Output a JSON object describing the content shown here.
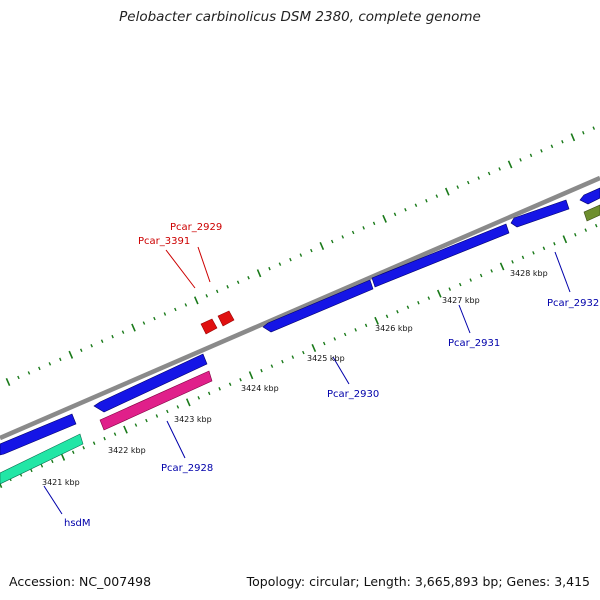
{
  "title": "Pelobacter carbinolicus DSM 2380, complete genome",
  "footer": {
    "accession": "Accession: NC_007498",
    "summary": "Topology: circular; Length: 3,665,893 bp; Genes: 3,415"
  },
  "colors": {
    "backbone": "#8a8a8a",
    "tick": "#1a7a1a",
    "cds": "#1010e0",
    "trna": "#e01010",
    "pink_feature": "#e0208a",
    "teal_feature": "#20e0a0",
    "olive_feature": "#6a8a2a",
    "forward_label": "#cc0000",
    "reverse_label": "#0000aa"
  },
  "ticks": [
    {
      "label": "3421 kbp"
    },
    {
      "label": "3422 kbp"
    },
    {
      "label": "3423 kbp"
    },
    {
      "label": "3424 kbp"
    },
    {
      "label": "3425 kbp"
    },
    {
      "label": "3426 kbp"
    },
    {
      "label": "3427 kbp"
    },
    {
      "label": "3428 kbp"
    }
  ],
  "gene_labels": [
    {
      "name": "Pcar_2929",
      "strand": "forward"
    },
    {
      "name": "Pcar_3391",
      "strand": "forward"
    },
    {
      "name": "Pcar_2932",
      "strand": "reverse"
    },
    {
      "name": "Pcar_2931",
      "strand": "reverse"
    },
    {
      "name": "Pcar_2930",
      "strand": "reverse"
    },
    {
      "name": "Pcar_2928",
      "strand": "reverse"
    },
    {
      "name": "hsdM",
      "strand": "reverse"
    }
  ]
}
